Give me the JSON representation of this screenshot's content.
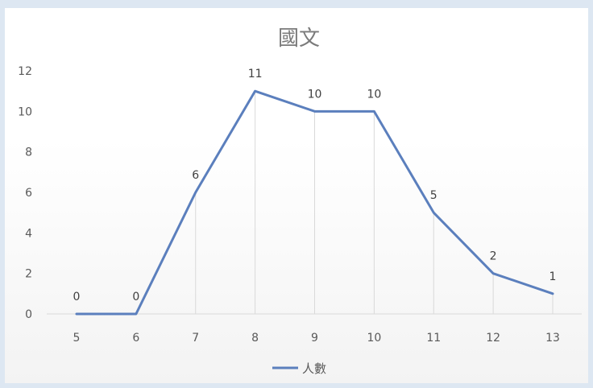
{
  "chart_data": {
    "type": "line",
    "title": "國文",
    "categories": [
      "5",
      "6",
      "7",
      "8",
      "9",
      "10",
      "11",
      "12",
      "13"
    ],
    "series": [
      {
        "name": "人數",
        "values": [
          0,
          0,
          6,
          11,
          10,
          10,
          5,
          2,
          1
        ],
        "color": "#5b7fbd"
      }
    ],
    "ylim": [
      0,
      12
    ],
    "yticks": [
      0,
      2,
      4,
      6,
      8,
      10,
      12
    ],
    "data_labels": true,
    "drop_lines": true,
    "grid": false,
    "legend": "bottom"
  }
}
